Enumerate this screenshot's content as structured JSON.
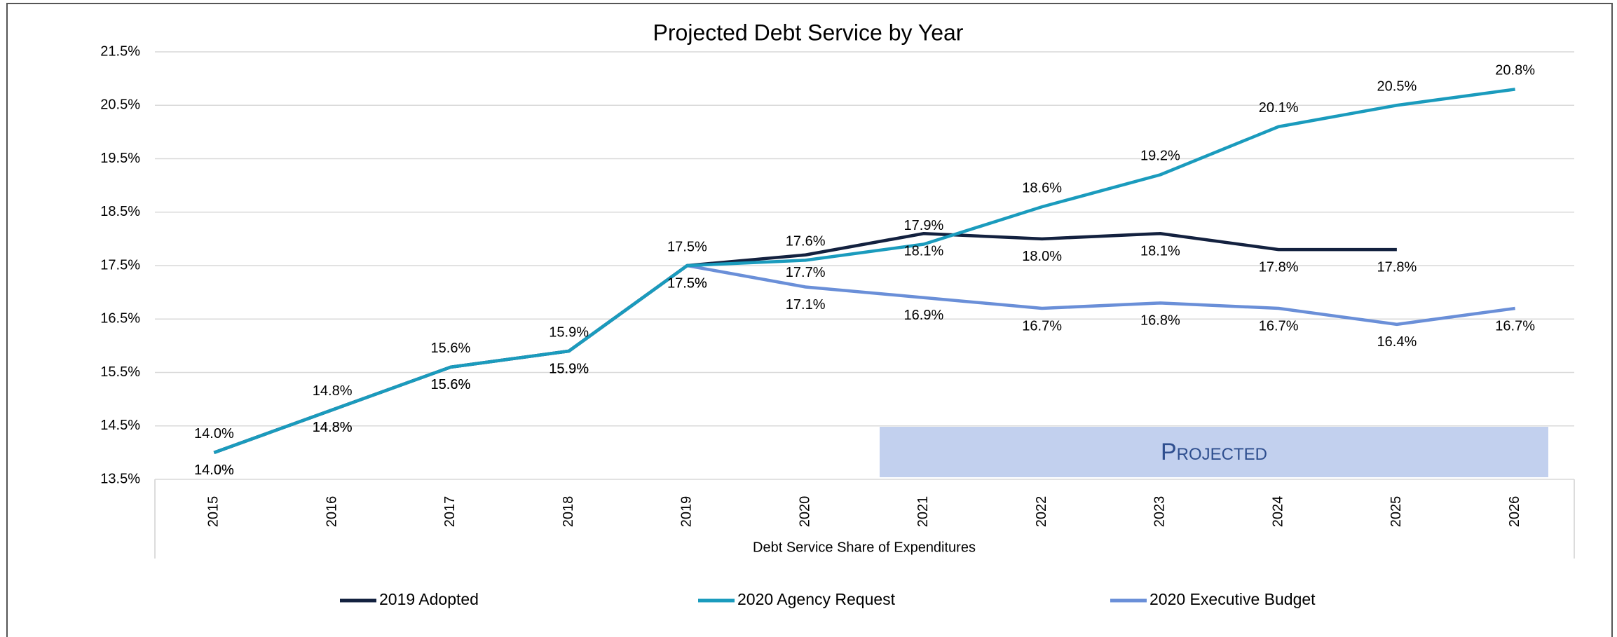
{
  "chart_data": {
    "type": "line",
    "title": "Projected Debt Service by Year",
    "x_label": "Debt Service Share of Expenditures",
    "annotation": "Projected",
    "categories": [
      "2015",
      "2016",
      "2017",
      "2018",
      "2019",
      "2020",
      "2021",
      "2022",
      "2023",
      "2024",
      "2025",
      "2026"
    ],
    "series": [
      {
        "name": "2019 Adopted",
        "color": "#13213f",
        "values": [
          14.0,
          14.8,
          15.6,
          15.9,
          17.5,
          17.7,
          18.1,
          18.0,
          18.1,
          17.8,
          17.8,
          null
        ],
        "value_labels": [
          "14.0%",
          "14.8%",
          "15.6%",
          "15.9%",
          "17.5%",
          "17.7%",
          "18.1%",
          "18.0%",
          "18.1%",
          "17.8%",
          "17.8%",
          null
        ]
      },
      {
        "name": "2020 Agency Request",
        "color": "#1a9bbd",
        "values": [
          14.0,
          14.8,
          15.6,
          15.9,
          17.5,
          17.6,
          17.9,
          18.6,
          19.2,
          20.1,
          20.5,
          20.8
        ],
        "value_labels": [
          "14.0%",
          "14.8%",
          "15.6%",
          "15.9%",
          "17.5%",
          "17.6%",
          "17.9%",
          "18.6%",
          "19.2%",
          "20.1%",
          "20.5%",
          "20.8%"
        ]
      },
      {
        "name": "2020 Executive Budget",
        "color": "#6a8fd8",
        "values": [
          14.0,
          14.8,
          15.6,
          15.9,
          17.5,
          17.1,
          16.9,
          16.7,
          16.8,
          16.7,
          16.4,
          16.7
        ],
        "value_labels": [
          "14.0%",
          "14.8%",
          "15.6%",
          "15.9%",
          "17.5%",
          "17.1%",
          "16.9%",
          "16.7%",
          "16.8%",
          "16.7%",
          "16.4%",
          "16.7%"
        ]
      }
    ],
    "ylim": [
      13.5,
      21.5
    ],
    "yticks": [
      {
        "value": 13.5,
        "label": "13.5%"
      },
      {
        "value": 14.5,
        "label": "14.5%"
      },
      {
        "value": 15.5,
        "label": "15.5%"
      },
      {
        "value": 16.5,
        "label": "16.5%"
      },
      {
        "value": 17.5,
        "label": "17.5%"
      },
      {
        "value": 18.5,
        "label": "18.5%"
      },
      {
        "value": 19.5,
        "label": "19.5%"
      },
      {
        "value": 20.5,
        "label": "20.5%"
      },
      {
        "value": 21.5,
        "label": "21.5%"
      }
    ],
    "grid": true,
    "legend": "bottom"
  }
}
